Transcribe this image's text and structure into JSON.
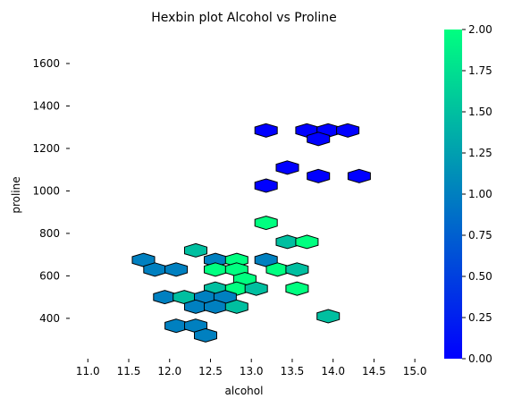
{
  "chart_data": {
    "type": "hexbin",
    "title": "Hexbin plot Alcohol vs Proline",
    "xlabel": "alcohol",
    "ylabel": "proline",
    "xlim": [
      10.8,
      15.25
    ],
    "ylim": [
      210,
      1760
    ],
    "x_ticks": [
      11.0,
      11.5,
      12.0,
      12.5,
      13.0,
      13.5,
      14.0,
      14.5,
      15.0
    ],
    "x_tick_labels": [
      "11.0",
      "11.5",
      "12.0",
      "12.5",
      "13.0",
      "13.5",
      "14.0",
      "14.5",
      "15.0"
    ],
    "y_ticks": [
      400,
      600,
      800,
      1000,
      1200,
      1400,
      1600
    ],
    "y_tick_labels": [
      "400",
      "600",
      "800",
      "1000",
      "1200",
      "1400",
      "1600"
    ],
    "colorbar": {
      "colormap": "winter",
      "range": [
        0,
        2
      ],
      "ticks": [
        0.0,
        0.25,
        0.5,
        0.75,
        1.0,
        1.25,
        1.5,
        1.75,
        2.0
      ],
      "tick_labels": [
        "0.00",
        "0.25",
        "0.50",
        "0.75",
        "1.00",
        "1.25",
        "1.50",
        "1.75",
        "2.00"
      ],
      "color_low": "#0000ff",
      "color_high": "#00ff80"
    },
    "bins": [
      {
        "x": 13.18,
        "y": 1285,
        "value": 0
      },
      {
        "x": 13.68,
        "y": 1285,
        "value": 0
      },
      {
        "x": 13.94,
        "y": 1285,
        "value": 0
      },
      {
        "x": 14.18,
        "y": 1285,
        "value": 0
      },
      {
        "x": 13.82,
        "y": 1245,
        "value": 0
      },
      {
        "x": 13.44,
        "y": 1110,
        "value": 0
      },
      {
        "x": 13.82,
        "y": 1070,
        "value": 0
      },
      {
        "x": 14.32,
        "y": 1070,
        "value": 0
      },
      {
        "x": 13.18,
        "y": 1025,
        "value": 0
      },
      {
        "x": 13.18,
        "y": 850,
        "value": 2
      },
      {
        "x": 13.44,
        "y": 760,
        "value": 1.5
      },
      {
        "x": 13.68,
        "y": 760,
        "value": 2
      },
      {
        "x": 12.32,
        "y": 720,
        "value": 1.5
      },
      {
        "x": 11.68,
        "y": 675,
        "value": 1
      },
      {
        "x": 12.56,
        "y": 675,
        "value": 1
      },
      {
        "x": 12.82,
        "y": 675,
        "value": 2
      },
      {
        "x": 13.18,
        "y": 675,
        "value": 1
      },
      {
        "x": 11.82,
        "y": 630,
        "value": 1
      },
      {
        "x": 12.08,
        "y": 630,
        "value": 1
      },
      {
        "x": 12.56,
        "y": 630,
        "value": 2
      },
      {
        "x": 12.82,
        "y": 630,
        "value": 2
      },
      {
        "x": 13.32,
        "y": 630,
        "value": 2
      },
      {
        "x": 13.56,
        "y": 630,
        "value": 1.5
      },
      {
        "x": 12.92,
        "y": 585,
        "value": 2
      },
      {
        "x": 12.56,
        "y": 540,
        "value": 1.5
      },
      {
        "x": 12.82,
        "y": 540,
        "value": 2
      },
      {
        "x": 13.06,
        "y": 540,
        "value": 1.5
      },
      {
        "x": 13.56,
        "y": 540,
        "value": 2
      },
      {
        "x": 11.94,
        "y": 500,
        "value": 1
      },
      {
        "x": 12.18,
        "y": 500,
        "value": 1.5
      },
      {
        "x": 12.44,
        "y": 500,
        "value": 1
      },
      {
        "x": 12.68,
        "y": 500,
        "value": 1
      },
      {
        "x": 12.32,
        "y": 455,
        "value": 1
      },
      {
        "x": 12.56,
        "y": 455,
        "value": 1
      },
      {
        "x": 12.82,
        "y": 455,
        "value": 1.5
      },
      {
        "x": 13.94,
        "y": 410,
        "value": 1.5
      },
      {
        "x": 12.08,
        "y": 365,
        "value": 1
      },
      {
        "x": 12.32,
        "y": 365,
        "value": 1
      },
      {
        "x": 12.44,
        "y": 320,
        "value": 1
      }
    ]
  }
}
